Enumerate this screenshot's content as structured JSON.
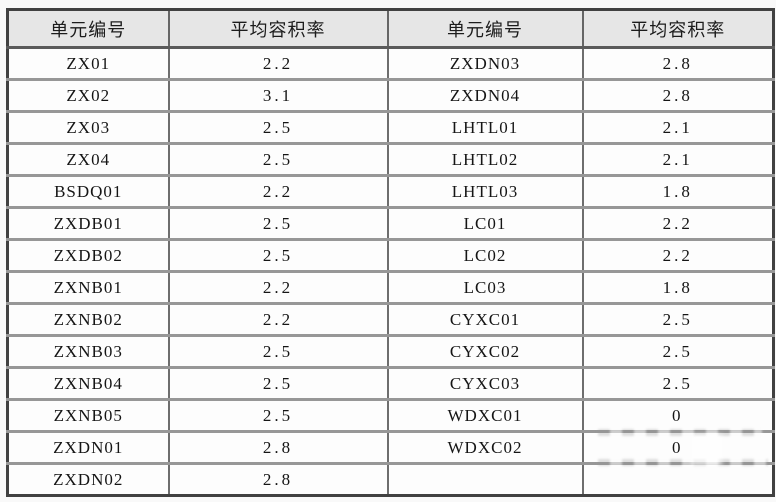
{
  "table": {
    "headers": [
      "单元编号",
      "平均容积率",
      "单元编号",
      "平均容积率"
    ],
    "rows": [
      [
        "ZX01",
        "2.2",
        "ZXDN03",
        "2.8"
      ],
      [
        "ZX02",
        "3.1",
        "ZXDN04",
        "2.8"
      ],
      [
        "ZX03",
        "2.5",
        "LHTL01",
        "2.1"
      ],
      [
        "ZX04",
        "2.5",
        "LHTL02",
        "2.1"
      ],
      [
        "BSDQ01",
        "2.2",
        "LHTL03",
        "1.8"
      ],
      [
        "ZXDB01",
        "2.5",
        "LC01",
        "2.2"
      ],
      [
        "ZXDB02",
        "2.5",
        "LC02",
        "2.2"
      ],
      [
        "ZXNB01",
        "2.2",
        "LC03",
        "1.8"
      ],
      [
        "ZXNB02",
        "2.2",
        "CYXC01",
        "2.5"
      ],
      [
        "ZXNB03",
        "2.5",
        "CYXC02",
        "2.5"
      ],
      [
        "ZXNB04",
        "2.5",
        "CYXC03",
        "2.5"
      ],
      [
        "ZXNB05",
        "2.5",
        "WDXC01",
        "0"
      ],
      [
        "ZXDN01",
        "2.8",
        "WDXC02",
        "0"
      ],
      [
        "ZXDN02",
        "2.8",
        "",
        ""
      ]
    ],
    "colors": {
      "header_bg": "#e6e6e6",
      "row_bg": "#fdfdfd",
      "border_outer": "#414141",
      "border_horizontal": "#979797",
      "border_vertical": "#6e6e6e",
      "text": "#151515"
    }
  }
}
